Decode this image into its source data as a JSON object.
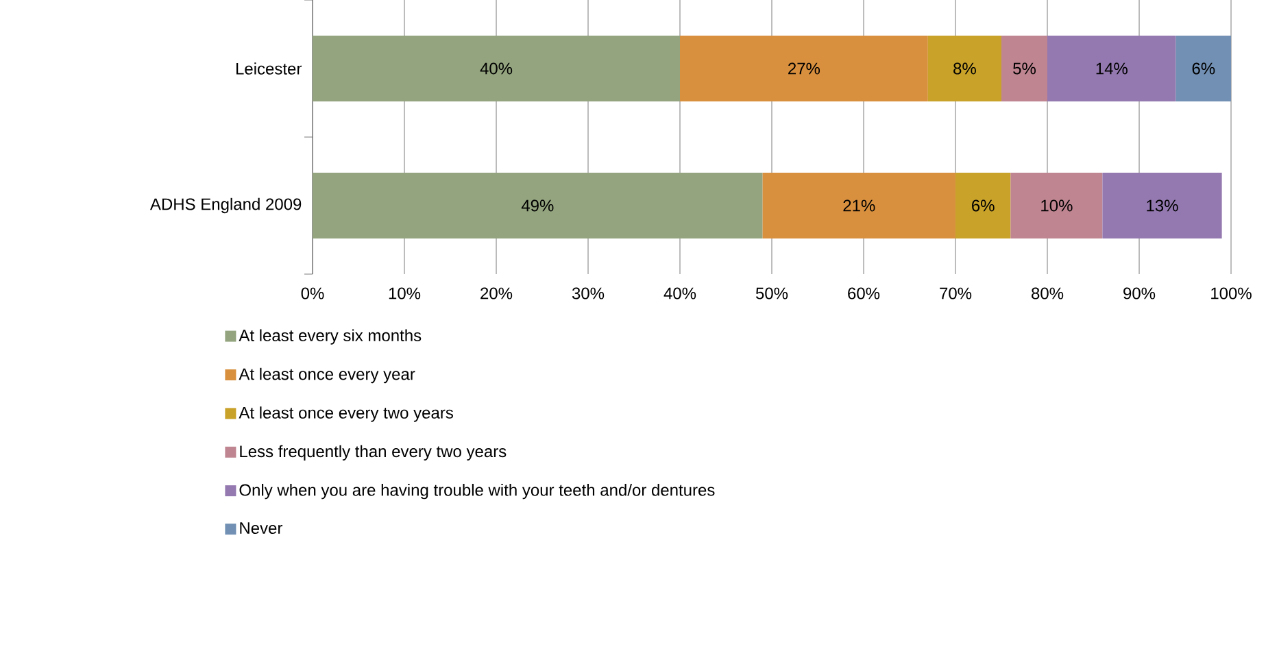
{
  "chart_data": {
    "type": "bar",
    "orientation": "horizontal",
    "stacked": true,
    "categories": [
      "Leicester",
      "ADHS England 2009"
    ],
    "series": [
      {
        "name": "At least every six months",
        "color": "#93a47e",
        "values": [
          40,
          49
        ],
        "value_labels": [
          "40%",
          "49%"
        ]
      },
      {
        "name": "At least once every year",
        "color": "#d9903e",
        "values": [
          27,
          21
        ],
        "value_labels": [
          "27%",
          "21%"
        ]
      },
      {
        "name": "At least once every two years",
        "color": "#c9a22a",
        "values": [
          8,
          6
        ],
        "value_labels": [
          "8%",
          "6%"
        ]
      },
      {
        "name": "Less frequently than every two years",
        "color": "#bf8591",
        "values": [
          5,
          10
        ],
        "value_labels": [
          "5%",
          "10%"
        ]
      },
      {
        "name": "Only when you are having trouble with your teeth and/or dentures",
        "color": "#9479b0",
        "values": [
          14,
          13
        ],
        "value_labels": [
          "14%",
          "13%"
        ]
      },
      {
        "name": "Never",
        "color": "#7190b3",
        "values": [
          6,
          null
        ],
        "value_labels": [
          "6%",
          null
        ]
      }
    ],
    "xlim": [
      0,
      100
    ],
    "xticks": [
      {
        "value": 0,
        "label": "0%"
      },
      {
        "value": 10,
        "label": "10%"
      },
      {
        "value": 20,
        "label": "20%"
      },
      {
        "value": 30,
        "label": "30%"
      },
      {
        "value": 40,
        "label": "40%"
      },
      {
        "value": 50,
        "label": "50%"
      },
      {
        "value": 60,
        "label": "60%"
      },
      {
        "value": 70,
        "label": "70%"
      },
      {
        "value": 80,
        "label": "80%"
      },
      {
        "value": 90,
        "label": "90%"
      },
      {
        "value": 100,
        "label": "100%"
      }
    ],
    "grid": "x",
    "legend": "bottom"
  }
}
